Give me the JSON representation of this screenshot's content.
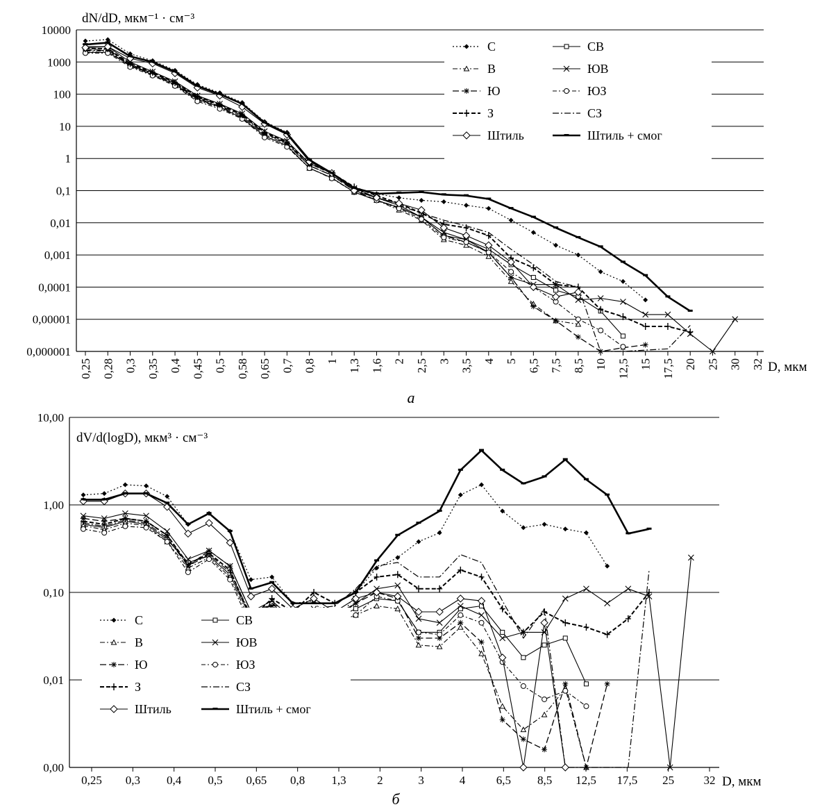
{
  "chart_data": [
    {
      "type": "line",
      "panel_label": "а",
      "ylabel": "dN/dD, мкм⁻¹ · см⁻³",
      "xlabel": "D, мкм",
      "y_scale": "log",
      "ylim": [
        1e-06,
        10000
      ],
      "y_ticks": [
        "10000",
        "1000",
        "100",
        "10",
        "1",
        "0,1",
        "0,01",
        "0,001",
        "0,0001",
        "0,00001",
        "0,000001"
      ],
      "x_ticks": [
        "0,25",
        "0,28",
        "0,3",
        "0,35",
        "0,4",
        "0,45",
        "0,5",
        "0,58",
        "0,65",
        "0,7",
        "0,8",
        "1",
        "1,3",
        "1,6",
        "2",
        "2,5",
        "3",
        "3,5",
        "4",
        "5",
        "6,5",
        "7,5",
        "8,5",
        "10",
        "12,5",
        "15",
        "17,5",
        "20",
        "25",
        "30",
        "32"
      ],
      "legend": [
        "С",
        "СВ",
        "В",
        "ЮВ",
        "Ю",
        "ЮЗ",
        "З",
        "СЗ",
        "Штиль",
        "Штиль + смог"
      ],
      "series": [
        {
          "name": "С",
          "values": [
            4500,
            5000,
            1800,
            1100,
            550,
            200,
            110,
            55,
            14,
            6.5,
            0.9,
            0.35,
            0.11,
            0.08,
            0.06,
            0.05,
            0.045,
            0.035,
            0.028,
            0.012,
            0.005,
            0.002,
            0.001,
            0.0003,
            0.00015,
            4e-05
          ]
        },
        {
          "name": "СВ",
          "values": [
            2000,
            2000,
            800,
            400,
            200,
            70,
            40,
            18,
            5,
            2.5,
            0.5,
            0.25,
            0.09,
            0.05,
            0.03,
            0.015,
            0.004,
            0.003,
            0.0015,
            0.0005,
            0.0002,
            8e-05,
            5e-05,
            1.8e-05,
            3e-06
          ]
        },
        {
          "name": "В",
          "values": [
            2200,
            2200,
            750,
            400,
            190,
            65,
            38,
            18,
            5,
            2.5,
            0.5,
            0.25,
            0.09,
            0.05,
            0.025,
            0.012,
            0.003,
            0.002,
            0.0009,
            0.00015,
            3e-05,
            9e-06,
            7e-06
          ]
        },
        {
          "name": "ЮВ",
          "values": [
            3000,
            3000,
            1000,
            500,
            250,
            90,
            50,
            25,
            7,
            3.5,
            0.7,
            0.35,
            0.12,
            0.06,
            0.035,
            0.015,
            0.005,
            0.003,
            0.0012,
            0.0002,
            0.00012,
            0.00012,
            4e-05,
            4.5e-05,
            3.5e-05,
            1.4e-05,
            1.4e-05,
            3.5e-06,
            1e-06,
            1e-05
          ]
        },
        {
          "name": "Ю",
          "values": [
            2500,
            2500,
            850,
            450,
            220,
            80,
            45,
            22,
            6,
            3,
            0.6,
            0.3,
            0.1,
            0.05,
            0.03,
            0.015,
            0.004,
            0.0025,
            0.0012,
            0.0002,
            2.5e-05,
            9e-06,
            2.8e-06,
            1e-06,
            1.3e-06,
            1.6e-06
          ]
        },
        {
          "name": "ЮЗ",
          "values": [
            1900,
            1900,
            700,
            380,
            180,
            60,
            35,
            17,
            4.5,
            2.3,
            0.5,
            0.24,
            0.09,
            0.05,
            0.028,
            0.013,
            0.0035,
            0.0025,
            0.0012,
            0.0003,
            0.0001,
            3.5e-05,
            1e-05,
            4.5e-06,
            1.4e-06
          ]
        },
        {
          "name": "З",
          "values": [
            2600,
            2600,
            900,
            480,
            230,
            85,
            48,
            23,
            6.5,
            3.2,
            0.7,
            0.35,
            0.13,
            0.07,
            0.04,
            0.02,
            0.009,
            0.007,
            0.004,
            0.0008,
            0.0004,
            0.00012,
            0.0001,
            2e-05,
            1.2e-05,
            6e-06,
            6e-06,
            4e-06
          ]
        },
        {
          "name": "СЗ",
          "values": [
            2300,
            2300,
            820,
            430,
            210,
            75,
            42,
            20,
            5.5,
            2.8,
            0.6,
            0.3,
            0.11,
            0.06,
            0.035,
            0.02,
            0.012,
            0.008,
            0.005,
            0.0015,
            0.0005,
            0.00015,
            0.0001,
            1e-06,
            1e-06,
            1.1e-06,
            1.2e-06,
            6.5e-06
          ]
        },
        {
          "name": "Штиль",
          "values": [
            2800,
            3000,
            1300,
            900,
            450,
            160,
            90,
            40,
            12,
            5.5,
            0.8,
            0.35,
            0.1,
            0.06,
            0.04,
            0.025,
            0.007,
            0.004,
            0.002,
            0.0006,
            0.0001,
            5e-05,
            7e-05
          ]
        },
        {
          "name": "Штиль + смог",
          "values": [
            3500,
            4000,
            1500,
            1000,
            500,
            180,
            100,
            50,
            13,
            6,
            0.9,
            0.35,
            0.12,
            0.08,
            0.085,
            0.09,
            0.075,
            0.07,
            0.055,
            0.028,
            0.015,
            0.007,
            0.0035,
            0.0018,
            0.0006,
            0.00023,
            5e-05,
            1.8e-05
          ]
        }
      ]
    },
    {
      "type": "line",
      "panel_label": "б",
      "ylabel": "dV/d(logD), мкм³ · см⁻³",
      "xlabel": "D, мкм",
      "y_scale": "log",
      "y_ticks": [
        "10,00",
        "1,00",
        "0,10",
        "0,01",
        "0,00"
      ],
      "x_ticks": [
        "0,25",
        "0,3",
        "0,4",
        "0,5",
        "0,65",
        "0,8",
        "1,3",
        "2",
        "3",
        "4",
        "6,5",
        "8,5",
        "12,5",
        "17,5",
        "25",
        "32"
      ],
      "legend": [
        "С",
        "СВ",
        "В",
        "ЮВ",
        "Ю",
        "ЮЗ",
        "З",
        "СЗ",
        "Штиль",
        "Штиль + смог"
      ],
      "series": [
        {
          "name": "С",
          "values": [
            1.3,
            1.35,
            1.7,
            1.65,
            1.25,
            0.6,
            0.8,
            0.5,
            0.14,
            0.15,
            0.075,
            0.08,
            0.038,
            0.1,
            0.19,
            0.25,
            0.38,
            0.48,
            1.3,
            1.7,
            0.85,
            0.55,
            0.6,
            0.53,
            0.48,
            0.2
          ]
        },
        {
          "name": "СВ",
          "values": [
            0.6,
            0.55,
            0.65,
            0.6,
            0.4,
            0.22,
            0.26,
            0.16,
            0.05,
            0.075,
            0.045,
            0.06,
            0.05,
            0.065,
            0.085,
            0.08,
            0.035,
            0.035,
            0.065,
            0.07,
            0.035,
            0.018,
            0.025,
            0.03,
            0.009
          ]
        },
        {
          "name": "В",
          "values": [
            0.58,
            0.52,
            0.62,
            0.58,
            0.38,
            0.19,
            0.25,
            0.15,
            0.045,
            0.06,
            0.04,
            0.055,
            0.045,
            0.055,
            0.07,
            0.065,
            0.025,
            0.024,
            0.04,
            0.02,
            0.005,
            0.0027,
            0.004,
            0.008,
            1e-08
          ]
        },
        {
          "name": "ЮВ",
          "values": [
            0.75,
            0.7,
            0.8,
            0.75,
            0.5,
            0.24,
            0.3,
            0.2,
            0.06,
            0.08,
            0.05,
            0.065,
            0.055,
            0.075,
            0.11,
            0.12,
            0.05,
            0.045,
            0.07,
            0.055,
            0.03,
            0.035,
            0.035,
            0.085,
            0.11,
            0.075,
            0.11,
            0.09,
            1e-08,
            0.25
          ]
        },
        {
          "name": "Ю",
          "values": [
            0.7,
            0.65,
            0.7,
            0.65,
            0.45,
            0.2,
            0.3,
            0.2,
            0.06,
            0.07,
            0.05,
            0.06,
            0.05,
            0.075,
            0.1,
            0.085,
            0.03,
            0.03,
            0.045,
            0.027,
            0.0035,
            0.0021,
            0.0016,
            0.009,
            1e-08,
            0.009
          ]
        },
        {
          "name": "ЮЗ",
          "values": [
            0.53,
            0.48,
            0.57,
            0.55,
            0.38,
            0.17,
            0.24,
            0.14,
            0.04,
            0.055,
            0.04,
            0.055,
            0.045,
            0.055,
            0.09,
            0.08,
            0.035,
            0.033,
            0.055,
            0.045,
            0.016,
            0.0085,
            0.006,
            0.0075,
            0.005
          ]
        },
        {
          "name": "З",
          "values": [
            0.65,
            0.6,
            0.7,
            0.65,
            0.45,
            0.21,
            0.28,
            0.18,
            0.05,
            0.085,
            0.06,
            0.1,
            0.075,
            0.1,
            0.15,
            0.16,
            0.11,
            0.11,
            0.18,
            0.15,
            0.065,
            0.035,
            0.06,
            0.045,
            0.04,
            0.033,
            0.05,
            0.1
          ]
        },
        {
          "name": "СЗ",
          "values": [
            0.62,
            0.57,
            0.67,
            0.62,
            0.42,
            0.2,
            0.27,
            0.17,
            0.055,
            0.075,
            0.055,
            0.065,
            0.07,
            0.11,
            0.2,
            0.22,
            0.15,
            0.15,
            0.27,
            0.22,
            0.08,
            0.03,
            0.065,
            1e-08,
            1e-08,
            1e-08,
            1e-08,
            0.18
          ]
        },
        {
          "name": "Штиль",
          "values": [
            1.1,
            1.1,
            1.35,
            1.35,
            0.95,
            0.47,
            0.62,
            0.37,
            0.09,
            0.11,
            0.065,
            0.085,
            0.06,
            0.085,
            0.1,
            0.09,
            0.06,
            0.06,
            0.085,
            0.08,
            0.018,
            1e-08,
            0.045,
            1e-08
          ]
        },
        {
          "name": "Штиль + смог",
          "values": [
            1.15,
            1.15,
            1.35,
            1.35,
            1.05,
            0.6,
            0.8,
            0.5,
            0.11,
            0.13,
            0.075,
            0.075,
            0.075,
            0.1,
            0.23,
            0.45,
            0.62,
            0.85,
            2.5,
            4.2,
            2.5,
            1.75,
            2.1,
            3.3,
            1.95,
            1.3,
            0.47,
            0.53
          ]
        }
      ]
    }
  ]
}
